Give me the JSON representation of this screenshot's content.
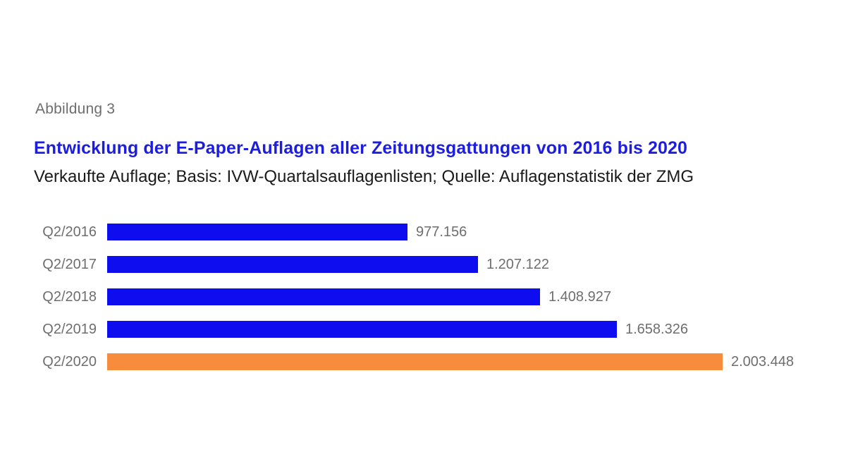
{
  "figure": {
    "caption": "Abbildung 3",
    "title": "Entwicklung der E-Paper-Auflagen aller Zeitungsgattungen von 2016 bis 2020",
    "subtitle": "Verkaufte Auflage; Basis: IVW-Quartalsauflagenlisten; Quelle: Auflagenstatistik der ZMG"
  },
  "colors": {
    "title_blue": "#1d1de0",
    "bar_blue": "#0d0df0",
    "bar_orange": "#f78c3c",
    "label_gray": "#6e6e6e",
    "subtitle_black": "#1a1a1a",
    "background": "#ffffff"
  },
  "chart_data": {
    "type": "bar",
    "orientation": "horizontal",
    "title": "Entwicklung der E-Paper-Auflagen aller Zeitungsgattungen von 2016 bis 2020",
    "subtitle": "Verkaufte Auflage; Basis: IVW-Quartalsauflagenlisten; Quelle: Auflagenstatistik der ZMG",
    "categories": [
      "Q2/2016",
      "Q2/2017",
      "Q2/2018",
      "Q2/2019",
      "Q2/2020"
    ],
    "values": [
      977156,
      1207122,
      1408927,
      1658326,
      2003448
    ],
    "value_labels": [
      "977.156",
      "1.207.122",
      "1.408.927",
      "1.658.326",
      "2.003.448"
    ],
    "highlight_index": 4,
    "xlabel": "",
    "ylabel": "",
    "xlim": [
      0,
      2003448
    ],
    "grid": false,
    "legend": false
  }
}
